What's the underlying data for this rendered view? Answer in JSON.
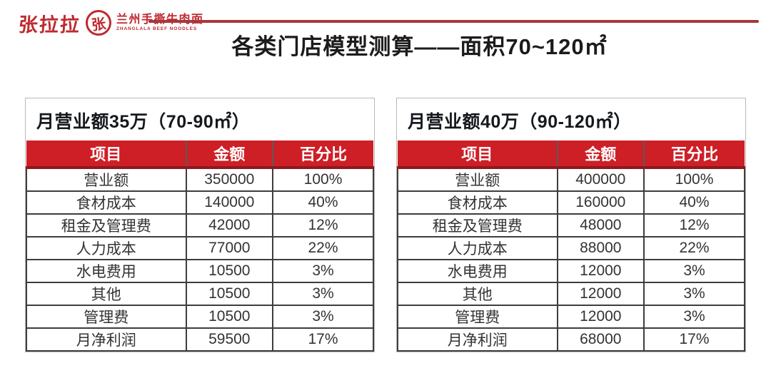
{
  "page": {
    "title": "各类门店模型测算——面积70~120㎡"
  },
  "logo": {
    "wordmark": "张拉拉",
    "seal_char": "张",
    "name_cn": "兰州手撕牛肉面",
    "name_en": "ZHANGLALA BEEF NOODLES"
  },
  "colors": {
    "brand_red": "#BE2A30",
    "divider_red": "#A8363C",
    "table_header_red": "#CE1F26",
    "table_header_dark_red": "#8D191D",
    "title_text": "#1B1B1B",
    "body_text": "#333333",
    "table_border": "#3D3D3D",
    "panel_border": "#B9B9B9"
  },
  "tables": [
    {
      "title": "月营业额35万（70-90㎡）",
      "headers": [
        "项目",
        "金额",
        "百分比"
      ],
      "rows": [
        {
          "item": "营业额",
          "amount": "350000",
          "percent": "100%"
        },
        {
          "item": "食材成本",
          "amount": "140000",
          "percent": "40%"
        },
        {
          "item": "租金及管理费",
          "amount": "42000",
          "percent": "12%"
        },
        {
          "item": "人力成本",
          "amount": "77000",
          "percent": "22%"
        },
        {
          "item": "水电费用",
          "amount": "10500",
          "percent": "3%"
        },
        {
          "item": "其他",
          "amount": "10500",
          "percent": "3%"
        },
        {
          "item": "管理费",
          "amount": "10500",
          "percent": "3%"
        },
        {
          "item": "月净利润",
          "amount": "59500",
          "percent": "17%"
        }
      ]
    },
    {
      "title": "月营业额40万（90-120㎡）",
      "headers": [
        "项目",
        "金额",
        "百分比"
      ],
      "rows": [
        {
          "item": "营业额",
          "amount": "400000",
          "percent": "100%"
        },
        {
          "item": "食材成本",
          "amount": "160000",
          "percent": "40%"
        },
        {
          "item": "租金及管理费",
          "amount": "48000",
          "percent": "12%"
        },
        {
          "item": "人力成本",
          "amount": "88000",
          "percent": "22%"
        },
        {
          "item": "水电费用",
          "amount": "12000",
          "percent": "3%"
        },
        {
          "item": "其他",
          "amount": "12000",
          "percent": "3%"
        },
        {
          "item": "管理费",
          "amount": "12000",
          "percent": "3%"
        },
        {
          "item": "月净利润",
          "amount": "68000",
          "percent": "17%"
        }
      ]
    }
  ]
}
